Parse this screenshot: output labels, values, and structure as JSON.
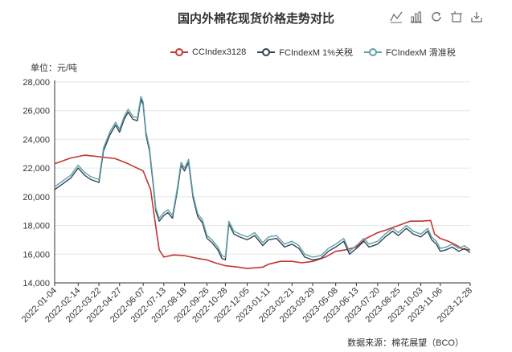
{
  "title": "国内外棉花现货价格走势对比",
  "unit_label": "单位：元/吨",
  "source": "数据来源：棉花展望（BCO）",
  "toolbox": [
    "line-chart-icon",
    "bar-chart-icon",
    "restore-icon",
    "data-view-icon",
    "save-image-icon"
  ],
  "colors": {
    "cc": "#c23531",
    "fc1": "#2f4554",
    "fcs": "#61a0a8"
  },
  "chart_data": {
    "type": "line",
    "title": "国内外棉花现货价格走势对比",
    "ylabel": "单位：元/吨",
    "ylim": [
      14000,
      28000
    ],
    "yticks": [
      14000,
      16000,
      18000,
      20000,
      22000,
      24000,
      26000,
      28000
    ],
    "xticks": [
      "2022-01-04",
      "2022-02-14",
      "2022-03-22",
      "2022-04-27",
      "2022-06-07",
      "2022-07-13",
      "2022-08-18",
      "2022-09-26",
      "2022-10-28",
      "2022-12-05",
      "2023-01-11",
      "2023-02-21",
      "2023-03-29",
      "2023-05-08",
      "2023-06-13",
      "2023-07-20",
      "2023-08-25",
      "2023-10-03",
      "2023-11-06",
      "2023-12-28"
    ],
    "grid": "horizontal",
    "legend_position": "top-right",
    "series": [
      {
        "name": "CCIndex3128",
        "color": "#c23531",
        "points": [
          [
            "2022-01-04",
            22300
          ],
          [
            "2022-02-01",
            22700
          ],
          [
            "2022-02-25",
            22900
          ],
          [
            "2022-03-22",
            22800
          ],
          [
            "2022-04-20",
            22650
          ],
          [
            "2022-05-12",
            22300
          ],
          [
            "2022-06-07",
            21800
          ],
          [
            "2022-06-20",
            20500
          ],
          [
            "2022-06-28",
            18200
          ],
          [
            "2022-07-05",
            16300
          ],
          [
            "2022-07-13",
            15800
          ],
          [
            "2022-07-30",
            15950
          ],
          [
            "2022-08-18",
            15900
          ],
          [
            "2022-09-10",
            15700
          ],
          [
            "2022-09-26",
            15600
          ],
          [
            "2022-10-10",
            15400
          ],
          [
            "2022-10-28",
            15200
          ],
          [
            "2022-11-20",
            15100
          ],
          [
            "2022-12-05",
            15000
          ],
          [
            "2023-01-01",
            15100
          ],
          [
            "2023-01-11",
            15300
          ],
          [
            "2023-02-01",
            15500
          ],
          [
            "2023-02-21",
            15500
          ],
          [
            "2023-03-10",
            15400
          ],
          [
            "2023-03-29",
            15500
          ],
          [
            "2023-04-20",
            15800
          ],
          [
            "2023-05-08",
            16200
          ],
          [
            "2023-05-25",
            16300
          ],
          [
            "2023-06-13",
            16500
          ],
          [
            "2023-06-30",
            17100
          ],
          [
            "2023-07-20",
            17500
          ],
          [
            "2023-08-05",
            17700
          ],
          [
            "2023-08-25",
            18000
          ],
          [
            "2023-09-15",
            18300
          ],
          [
            "2023-10-03",
            18300
          ],
          [
            "2023-10-20",
            18350
          ],
          [
            "2023-10-27",
            17400
          ],
          [
            "2023-11-06",
            17100
          ],
          [
            "2023-11-20",
            16900
          ],
          [
            "2023-12-05",
            16600
          ],
          [
            "2023-12-15",
            16350
          ],
          [
            "2023-12-28",
            16300
          ]
        ]
      },
      {
        "name": "FCIndexM 1%关税",
        "color": "#2f4554",
        "points": [
          [
            "2022-01-04",
            20500
          ],
          [
            "2022-01-18",
            20900
          ],
          [
            "2022-02-01",
            21300
          ],
          [
            "2022-02-14",
            22000
          ],
          [
            "2022-02-25",
            21500
          ],
          [
            "2022-03-08",
            21200
          ],
          [
            "2022-03-22",
            21000
          ],
          [
            "2022-03-30",
            23200
          ],
          [
            "2022-04-10",
            24300
          ],
          [
            "2022-04-20",
            25000
          ],
          [
            "2022-04-27",
            24500
          ],
          [
            "2022-05-05",
            25400
          ],
          [
            "2022-05-12",
            25900
          ],
          [
            "2022-05-20",
            25400
          ],
          [
            "2022-05-28",
            25300
          ],
          [
            "2022-06-03",
            26800
          ],
          [
            "2022-06-07",
            26400
          ],
          [
            "2022-06-12",
            24300
          ],
          [
            "2022-06-18",
            23200
          ],
          [
            "2022-06-24",
            21000
          ],
          [
            "2022-06-29",
            19000
          ],
          [
            "2022-07-05",
            18300
          ],
          [
            "2022-07-13",
            18700
          ],
          [
            "2022-07-20",
            18900
          ],
          [
            "2022-07-28",
            18500
          ],
          [
            "2022-08-05",
            20300
          ],
          [
            "2022-08-12",
            22200
          ],
          [
            "2022-08-18",
            21800
          ],
          [
            "2022-08-25",
            22400
          ],
          [
            "2022-09-02",
            19900
          ],
          [
            "2022-09-10",
            18600
          ],
          [
            "2022-09-18",
            18200
          ],
          [
            "2022-09-26",
            17100
          ],
          [
            "2022-10-05",
            16800
          ],
          [
            "2022-10-15",
            16300
          ],
          [
            "2022-10-22",
            15700
          ],
          [
            "2022-10-28",
            15600
          ],
          [
            "2022-11-03",
            18100
          ],
          [
            "2022-11-12",
            17400
          ],
          [
            "2022-11-22",
            17200
          ],
          [
            "2022-12-05",
            17000
          ],
          [
            "2022-12-18",
            17300
          ],
          [
            "2023-01-01",
            16600
          ],
          [
            "2023-01-11",
            17000
          ],
          [
            "2023-01-25",
            17100
          ],
          [
            "2023-02-08",
            16500
          ],
          [
            "2023-02-21",
            16700
          ],
          [
            "2023-03-05",
            16400
          ],
          [
            "2023-03-15",
            15800
          ],
          [
            "2023-03-29",
            15600
          ],
          [
            "2023-04-12",
            15700
          ],
          [
            "2023-04-25",
            16200
          ],
          [
            "2023-05-08",
            16500
          ],
          [
            "2023-05-22",
            16900
          ],
          [
            "2023-06-01",
            16000
          ],
          [
            "2023-06-13",
            16400
          ],
          [
            "2023-06-26",
            16900
          ],
          [
            "2023-07-05",
            16500
          ],
          [
            "2023-07-20",
            16700
          ],
          [
            "2023-08-02",
            17200
          ],
          [
            "2023-08-15",
            17600
          ],
          [
            "2023-08-25",
            17300
          ],
          [
            "2023-09-08",
            17800
          ],
          [
            "2023-09-20",
            17400
          ],
          [
            "2023-10-03",
            17200
          ],
          [
            "2023-10-15",
            17600
          ],
          [
            "2023-10-22",
            17000
          ],
          [
            "2023-10-30",
            16700
          ],
          [
            "2023-11-06",
            16200
          ],
          [
            "2023-11-16",
            16300
          ],
          [
            "2023-11-27",
            16500
          ],
          [
            "2023-12-08",
            16200
          ],
          [
            "2023-12-18",
            16400
          ],
          [
            "2023-12-28",
            16100
          ]
        ]
      },
      {
        "name": "FCIndexM 滑准税",
        "color": "#61a0a8",
        "points": [
          [
            "2022-01-04",
            20700
          ],
          [
            "2022-01-18",
            21100
          ],
          [
            "2022-02-01",
            21500
          ],
          [
            "2022-02-14",
            22200
          ],
          [
            "2022-02-25",
            21700
          ],
          [
            "2022-03-08",
            21400
          ],
          [
            "2022-03-22",
            21200
          ],
          [
            "2022-03-30",
            23400
          ],
          [
            "2022-04-10",
            24500
          ],
          [
            "2022-04-20",
            25200
          ],
          [
            "2022-04-27",
            24700
          ],
          [
            "2022-05-05",
            25600
          ],
          [
            "2022-05-12",
            26100
          ],
          [
            "2022-05-20",
            25600
          ],
          [
            "2022-05-28",
            25500
          ],
          [
            "2022-06-03",
            27000
          ],
          [
            "2022-06-07",
            26600
          ],
          [
            "2022-06-12",
            24500
          ],
          [
            "2022-06-18",
            23400
          ],
          [
            "2022-06-24",
            21200
          ],
          [
            "2022-06-29",
            19200
          ],
          [
            "2022-07-05",
            18500
          ],
          [
            "2022-07-13",
            18900
          ],
          [
            "2022-07-20",
            19100
          ],
          [
            "2022-07-28",
            18700
          ],
          [
            "2022-08-05",
            20500
          ],
          [
            "2022-08-12",
            22400
          ],
          [
            "2022-08-18",
            22000
          ],
          [
            "2022-08-25",
            22600
          ],
          [
            "2022-09-02",
            20100
          ],
          [
            "2022-09-10",
            18800
          ],
          [
            "2022-09-18",
            18400
          ],
          [
            "2022-09-26",
            17300
          ],
          [
            "2022-10-05",
            17000
          ],
          [
            "2022-10-15",
            16500
          ],
          [
            "2022-10-22",
            15900
          ],
          [
            "2022-10-28",
            15800
          ],
          [
            "2022-11-03",
            18300
          ],
          [
            "2022-11-12",
            17600
          ],
          [
            "2022-11-22",
            17400
          ],
          [
            "2022-12-05",
            17200
          ],
          [
            "2022-12-18",
            17500
          ],
          [
            "2023-01-01",
            16800
          ],
          [
            "2023-01-11",
            17200
          ],
          [
            "2023-01-25",
            17300
          ],
          [
            "2023-02-08",
            16700
          ],
          [
            "2023-02-21",
            16900
          ],
          [
            "2023-03-05",
            16600
          ],
          [
            "2023-03-15",
            16000
          ],
          [
            "2023-03-29",
            15800
          ],
          [
            "2023-04-12",
            15900
          ],
          [
            "2023-04-25",
            16400
          ],
          [
            "2023-05-08",
            16700
          ],
          [
            "2023-05-22",
            17100
          ],
          [
            "2023-06-01",
            16200
          ],
          [
            "2023-06-13",
            16600
          ],
          [
            "2023-06-26",
            17100
          ],
          [
            "2023-07-05",
            16700
          ],
          [
            "2023-07-20",
            16900
          ],
          [
            "2023-08-02",
            17400
          ],
          [
            "2023-08-15",
            17800
          ],
          [
            "2023-08-25",
            17500
          ],
          [
            "2023-09-08",
            18000
          ],
          [
            "2023-09-20",
            17600
          ],
          [
            "2023-10-03",
            17400
          ],
          [
            "2023-10-15",
            17800
          ],
          [
            "2023-10-22",
            17200
          ],
          [
            "2023-10-30",
            16900
          ],
          [
            "2023-11-06",
            16400
          ],
          [
            "2023-11-16",
            16500
          ],
          [
            "2023-11-27",
            16700
          ],
          [
            "2023-12-08",
            16400
          ],
          [
            "2023-12-18",
            16600
          ],
          [
            "2023-12-28",
            16300
          ]
        ]
      }
    ]
  }
}
